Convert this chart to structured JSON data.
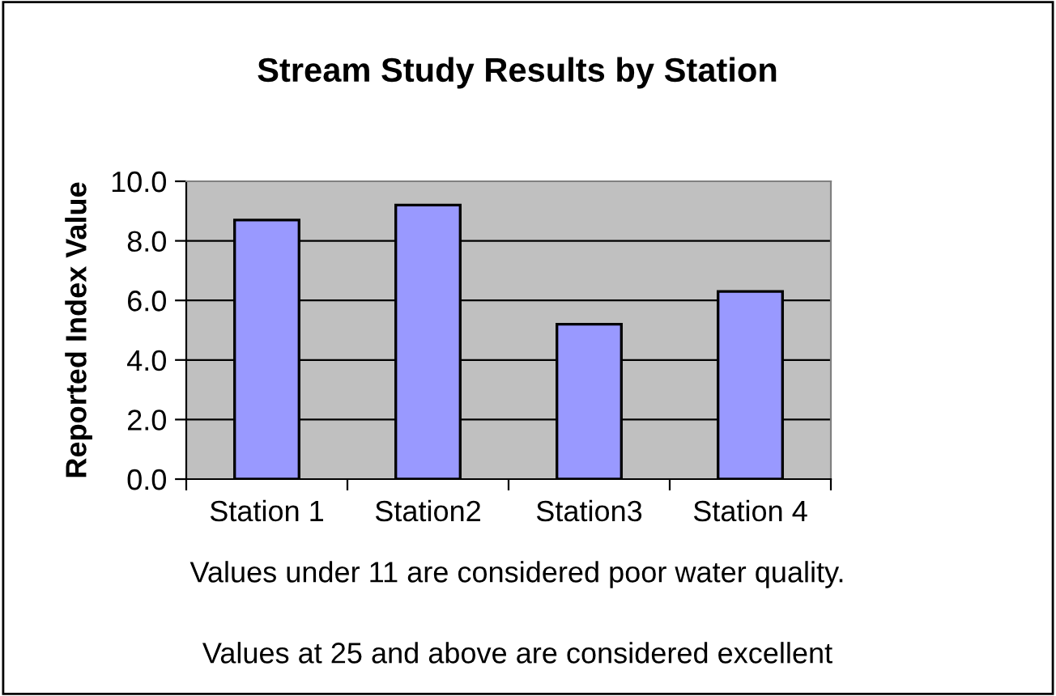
{
  "chart_data": {
    "type": "bar",
    "title": "Stream Study Results by Station",
    "ylabel": "Reported Index Value",
    "categories": [
      "Station 1",
      "Station2",
      "Station3",
      "Station 4"
    ],
    "values": [
      8.7,
      9.2,
      5.2,
      6.3
    ],
    "color": "#9999ff",
    "ylim": [
      0,
      10
    ],
    "yticks": [
      {
        "value": 0,
        "label": "0.0"
      },
      {
        "value": 2,
        "label": "2.0"
      },
      {
        "value": 4,
        "label": "4.0"
      },
      {
        "value": 6,
        "label": "6.0"
      },
      {
        "value": 8,
        "label": "8.0"
      },
      {
        "value": 10,
        "label": "10.0"
      }
    ],
    "grid": "y",
    "annotations": [
      "Values under 11 are considered poor water quality.",
      "Values at 25 and above are considered excellent"
    ]
  }
}
